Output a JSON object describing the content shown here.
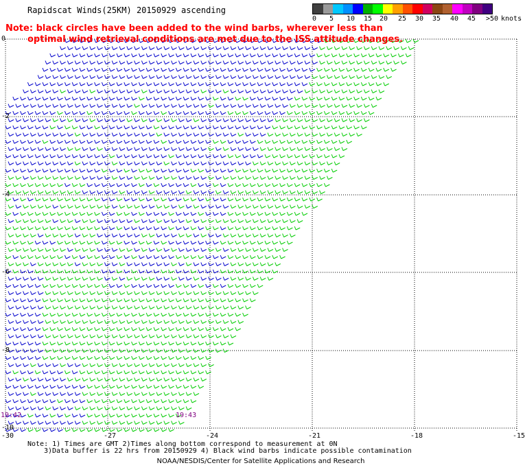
{
  "title": "Rapidscat Winds(25KM) 20150929 ascending",
  "note": {
    "line1": "Note: black circles have been added to the wind barbs, wherever less than",
    "line2": "optimal wind retrieval conditions are met due to the ISS attitude changes."
  },
  "legend": {
    "ticks": [
      "0",
      "5",
      "10",
      "15",
      "20",
      "25",
      "30",
      "35",
      "40",
      "45",
      ">50"
    ],
    "units": "knots",
    "colors": [
      "#404040",
      "#9a9a9a",
      "#00c8ff",
      "#0090ff",
      "#0000ff",
      "#00b000",
      "#00ff00",
      "#ffff00",
      "#ffa000",
      "#ff5000",
      "#ff0000",
      "#d00060",
      "#8b4513",
      "#b06030",
      "#ff00ff",
      "#c000c0",
      "#800080",
      "#400080"
    ]
  },
  "map": {
    "lat_labels": [
      "0",
      "-2",
      "-4",
      "-6",
      "-8",
      "-10"
    ],
    "lon_labels": [
      "-30",
      "-27",
      "-24",
      "-21",
      "-18",
      "-15"
    ],
    "time_labels": [
      "19:42",
      "19:43"
    ],
    "barb_colors": {
      "low": "#0000cc",
      "mid": "#00cc00"
    }
  },
  "footer": {
    "line1": "Note: 1) Times are GMT 2)Times along bottom correspond to measurement at 0N",
    "line2": "3)Data buffer is 22 hrs from 20150929 4) Black wind barbs indicate possible contamination",
    "line3": "NOAA/NESDIS/Center for Satellite Applications and Research"
  }
}
